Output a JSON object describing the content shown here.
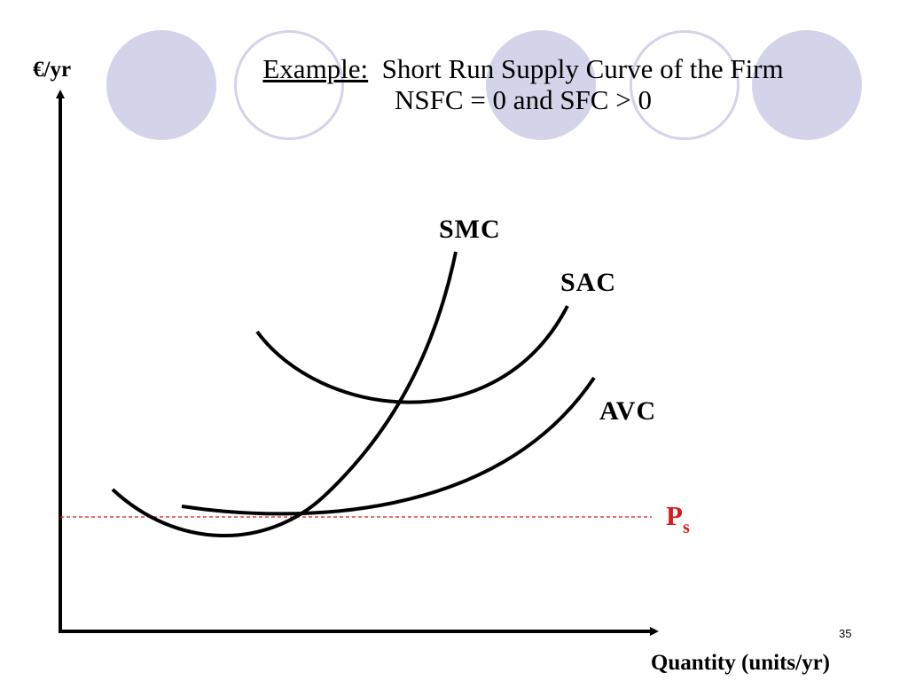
{
  "slide": {
    "title_keyword": "Example:",
    "title_rest": "Short Run Supply Curve of the Firm",
    "subtitle": "NSFC = 0 and SFC > 0",
    "page_number": "35",
    "decoration_color": "#d3d3ea"
  },
  "diagram": {
    "y_axis_label": "€/yr",
    "x_axis_label": "Quantity (units/yr)",
    "curves": [
      {
        "id": "smc",
        "label": "SMC",
        "color": "#000000"
      },
      {
        "id": "sac",
        "label": "SAC",
        "color": "#000000"
      },
      {
        "id": "avc",
        "label": "AVC",
        "color": "#000000"
      }
    ],
    "price_line": {
      "label_main": "P",
      "label_sub": "s",
      "color": "#d81c1c",
      "style": "dashed"
    }
  }
}
